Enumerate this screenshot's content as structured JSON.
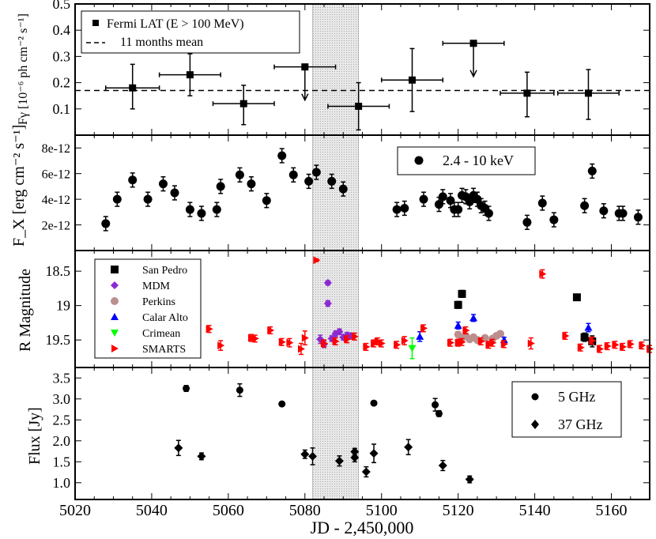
{
  "x_axis": {
    "label": "JD - 2,450,000",
    "range": [
      5020,
      5170
    ],
    "ticks": [
      "5020",
      "5040",
      "5060",
      "5080",
      "5100",
      "5120",
      "5140",
      "5160"
    ],
    "tick_values": [
      5020,
      5040,
      5060,
      5080,
      5100,
      5120,
      5140,
      5160
    ]
  },
  "shaded_band": {
    "from": 5082,
    "to": 5094,
    "color": "#d9d9d9"
  },
  "chart_data": [
    {
      "type": "scatter",
      "panel": "fermi",
      "ylabel": "Fγ [10⁻⁶ ph cm⁻² s⁻¹]",
      "ylim": [
        0.0,
        0.5
      ],
      "yticks": [
        {
          "v": 0.1,
          "t": "0.1"
        },
        {
          "v": 0.2,
          "t": "0.2"
        },
        {
          "v": 0.3,
          "t": "0.3"
        },
        {
          "v": 0.4,
          "t": "0.4"
        },
        {
          "v": 0.5,
          "t": "0.5"
        }
      ],
      "legend": {
        "points": "Fermi LAT (E > 100 MeV)",
        "mean": "11 months mean"
      },
      "mean": 0.17,
      "points": [
        {
          "x": 5035,
          "y": 0.18,
          "xerr": 7,
          "ylo": 0.1,
          "yhi": 0.27,
          "ul": false
        },
        {
          "x": 5050,
          "y": 0.23,
          "xerr": 8,
          "ylo": 0.15,
          "yhi": 0.31,
          "ul": false
        },
        {
          "x": 5064,
          "y": 0.12,
          "xerr": 8,
          "ylo": 0.04,
          "yhi": 0.19,
          "ul": false
        },
        {
          "x": 5080,
          "y": 0.26,
          "xerr": 8,
          "ylo": 0.18,
          "yhi": 0.26,
          "ul": true
        },
        {
          "x": 5094,
          "y": 0.11,
          "xerr": 8,
          "ylo": 0.02,
          "yhi": 0.2,
          "ul": false
        },
        {
          "x": 5108,
          "y": 0.21,
          "xerr": 8,
          "ylo": 0.09,
          "yhi": 0.33,
          "ul": false
        },
        {
          "x": 5124,
          "y": 0.35,
          "xerr": 8,
          "ylo": 0.27,
          "yhi": 0.35,
          "ul": true
        },
        {
          "x": 5138,
          "y": 0.16,
          "xerr": 7,
          "ylo": 0.07,
          "yhi": 0.24,
          "ul": false
        },
        {
          "x": 5154,
          "y": 0.16,
          "xerr": 8,
          "ylo": 0.06,
          "yhi": 0.25,
          "ul": false
        }
      ]
    },
    {
      "type": "scatter",
      "panel": "xray",
      "ylabel": "F_X [erg cm⁻² s⁻¹]",
      "ylim": [
        0,
        9e-12
      ],
      "yticks": [
        {
          "v": 2e-12,
          "t": "2e-12"
        },
        {
          "v": 4e-12,
          "t": "4e-12"
        },
        {
          "v": 6e-12,
          "t": "6e-12"
        },
        {
          "v": 8e-12,
          "t": "8e-12"
        }
      ],
      "legend": "2.4 - 10 keV",
      "err": 5.5e-13,
      "points": [
        [
          5028,
          2.1e-12
        ],
        [
          5031,
          4e-12
        ],
        [
          5035,
          5.5e-12
        ],
        [
          5039,
          4e-12
        ],
        [
          5043,
          5.2e-12
        ],
        [
          5046,
          4.5e-12
        ],
        [
          5050,
          3.2e-12
        ],
        [
          5053,
          2.9e-12
        ],
        [
          5057,
          3.2e-12
        ],
        [
          5058,
          5e-12
        ],
        [
          5063,
          5.9e-12
        ],
        [
          5066,
          5.2e-12
        ],
        [
          5070,
          3.9e-12
        ],
        [
          5074,
          7.4e-12
        ],
        [
          5077,
          5.9e-12
        ],
        [
          5081,
          5.4e-12
        ],
        [
          5083,
          6.1e-12
        ],
        [
          5087,
          5.4e-12
        ],
        [
          5090,
          4.8e-12
        ],
        [
          5104,
          3.2e-12
        ],
        [
          5106,
          3.3e-12
        ],
        [
          5111,
          4e-12
        ],
        [
          5115,
          3.6e-12
        ],
        [
          5116,
          4.2e-12
        ],
        [
          5118,
          3.9e-12
        ],
        [
          5119,
          3.2e-12
        ],
        [
          5120,
          3.2e-12
        ],
        [
          5121,
          4.3e-12
        ],
        [
          5122,
          4.2e-12
        ],
        [
          5123,
          3.8e-12
        ],
        [
          5124,
          4.3e-12
        ],
        [
          5125,
          4e-12
        ],
        [
          5126,
          3.5e-12
        ],
        [
          5127,
          3.3e-12
        ],
        [
          5128,
          2.9e-12
        ],
        [
          5138,
          2.2e-12
        ],
        [
          5142,
          3.7e-12
        ],
        [
          5145,
          2.4e-12
        ],
        [
          5153,
          3.5e-12
        ],
        [
          5155,
          6.2e-12
        ],
        [
          5158,
          3.1e-12
        ],
        [
          5162,
          2.9e-12
        ],
        [
          5163,
          2.9e-12
        ],
        [
          5167,
          2.6e-12
        ]
      ]
    },
    {
      "type": "scatter",
      "panel": "optical",
      "ylabel": "R Magnitude",
      "ylim": [
        18.2,
        19.9
      ],
      "inverted": true,
      "yticks": [
        {
          "v": 18.5,
          "t": "18.5"
        },
        {
          "v": 19.0,
          "t": "19"
        },
        {
          "v": 19.5,
          "t": "19.5"
        }
      ],
      "series": [
        {
          "name": "San Pedro",
          "color": "#000000",
          "marker": "square",
          "points": [
            [
              5120,
              18.99,
              0.05
            ],
            [
              5121,
              18.83,
              0.05
            ],
            [
              5151,
              18.88,
              0.04
            ],
            [
              5153,
              19.46,
              0.06
            ],
            [
              5155,
              19.52,
              0.08
            ]
          ]
        },
        {
          "name": "MDM",
          "color": "#8b2ad1",
          "marker": "diamond",
          "points": [
            [
              5084,
              19.49,
              0.06
            ],
            [
              5085,
              19.56,
              0.05
            ],
            [
              5086,
              18.67,
              0.03
            ],
            [
              5086,
              18.97,
              0.04
            ],
            [
              5087,
              19.48,
              0.04
            ],
            [
              5088,
              19.41,
              0.04
            ],
            [
              5089,
              19.38,
              0.04
            ],
            [
              5090,
              19.46,
              0.04
            ],
            [
              5091,
              19.43,
              0.04
            ],
            [
              5092,
              19.44,
              0.04
            ]
          ]
        },
        {
          "name": "Perkins",
          "color": "#bc8f8f",
          "marker": "circle",
          "points": [
            [
              5120,
              19.42,
              0.02
            ],
            [
              5121,
              19.47,
              0.02
            ],
            [
              5122,
              19.44,
              0.02
            ],
            [
              5123,
              19.49,
              0.02
            ],
            [
              5124,
              19.46,
              0.02
            ],
            [
              5125,
              19.5,
              0.02
            ],
            [
              5127,
              19.47,
              0.02
            ],
            [
              5129,
              19.48,
              0.02
            ],
            [
              5130,
              19.44,
              0.02
            ],
            [
              5131,
              19.41,
              0.02
            ]
          ]
        },
        {
          "name": "Calar Alto",
          "color": "#0000ff",
          "marker": "triangle-up",
          "points": [
            [
              5110,
              19.45,
              0.07
            ],
            [
              5120,
              19.29,
              0.05
            ],
            [
              5124,
              19.18,
              0.05
            ],
            [
              5132,
              19.5,
              0.04
            ],
            [
              5154,
              19.32,
              0.06
            ]
          ]
        },
        {
          "name": "Crimean",
          "color": "#00ff00",
          "marker": "triangle-down",
          "points": [
            [
              5108,
              19.62,
              0.15
            ]
          ]
        },
        {
          "name": "SMARTS",
          "color": "#ff0000",
          "marker": "triangle-right",
          "points": [
            [
              5055,
              19.34,
              0.05
            ],
            [
              5058,
              19.58,
              0.07
            ],
            [
              5066,
              19.47,
              0.05
            ],
            [
              5067,
              19.48,
              0.05
            ],
            [
              5071,
              19.36,
              0.05
            ],
            [
              5074,
              19.53,
              0.05
            ],
            [
              5076,
              19.54,
              0.06
            ],
            [
              5079,
              19.63,
              0.08
            ],
            [
              5080,
              19.47,
              0.1
            ],
            [
              5083,
              18.34,
              0.02
            ],
            [
              5085,
              19.55,
              0.05
            ],
            [
              5088,
              19.52,
              0.05
            ],
            [
              5091,
              19.49,
              0.05
            ],
            [
              5093,
              19.45,
              0.05
            ],
            [
              5096,
              19.6,
              0.05
            ],
            [
              5098,
              19.55,
              0.05
            ],
            [
              5099,
              19.52,
              0.05
            ],
            [
              5100,
              19.55,
              0.05
            ],
            [
              5104,
              19.57,
              0.05
            ],
            [
              5106,
              19.51,
              0.06
            ],
            [
              5111,
              19.33,
              0.05
            ],
            [
              5118,
              19.54,
              0.05
            ],
            [
              5120,
              19.54,
              0.05
            ],
            [
              5121,
              19.53,
              0.05
            ],
            [
              5122,
              19.36,
              0.05
            ],
            [
              5126,
              19.52,
              0.05
            ],
            [
              5128,
              19.57,
              0.05
            ],
            [
              5129,
              19.54,
              0.05
            ],
            [
              5132,
              19.56,
              0.05
            ],
            [
              5139,
              19.55,
              0.08
            ],
            [
              5142,
              18.54,
              0.06
            ],
            [
              5148,
              19.44,
              0.05
            ],
            [
              5152,
              19.61,
              0.05
            ],
            [
              5155,
              19.51,
              0.05
            ],
            [
              5157,
              19.63,
              0.05
            ],
            [
              5159,
              19.59,
              0.05
            ],
            [
              5161,
              19.57,
              0.05
            ],
            [
              5163,
              19.6,
              0.05
            ],
            [
              5165,
              19.56,
              0.05
            ],
            [
              5168,
              19.58,
              0.05
            ],
            [
              5170,
              19.63,
              0.05
            ]
          ]
        }
      ]
    },
    {
      "type": "scatter",
      "panel": "radio",
      "ylabel": "Flux [Jy]",
      "ylim": [
        0.6,
        3.75
      ],
      "yticks": [
        {
          "v": 1.0,
          "t": "1.0"
        },
        {
          "v": 1.5,
          "t": "1.5"
        },
        {
          "v": 2.0,
          "t": "2.0"
        },
        {
          "v": 2.5,
          "t": "2.5"
        },
        {
          "v": 3.0,
          "t": "3.0"
        },
        {
          "v": 3.5,
          "t": "3.5"
        }
      ],
      "series": [
        {
          "name": "5 GHz",
          "marker": "circle",
          "points": [
            [
              5049,
              3.25,
              0.07
            ],
            [
              5063,
              3.21,
              0.15
            ],
            [
              5074,
              2.88,
              0.03
            ],
            [
              5098,
              2.9,
              0.03
            ],
            [
              5114,
              2.86,
              0.15
            ],
            [
              5115,
              2.65,
              0.07
            ]
          ]
        },
        {
          "name": "37 GHz",
          "marker": "diamond",
          "points": [
            [
              5047,
              1.83,
              0.18
            ],
            [
              5053,
              1.63,
              0.08
            ],
            [
              5080,
              1.68,
              0.1
            ],
            [
              5082,
              1.63,
              0.2
            ],
            [
              5089,
              1.52,
              0.12
            ],
            [
              5093,
              1.6,
              0.1
            ],
            [
              5093,
              1.74,
              0.08
            ],
            [
              5096,
              1.26,
              0.12
            ],
            [
              5098,
              1.7,
              0.22
            ],
            [
              5107,
              1.85,
              0.18
            ],
            [
              5116,
              1.41,
              0.12
            ],
            [
              5123,
              1.08,
              0.08
            ]
          ]
        }
      ]
    }
  ]
}
